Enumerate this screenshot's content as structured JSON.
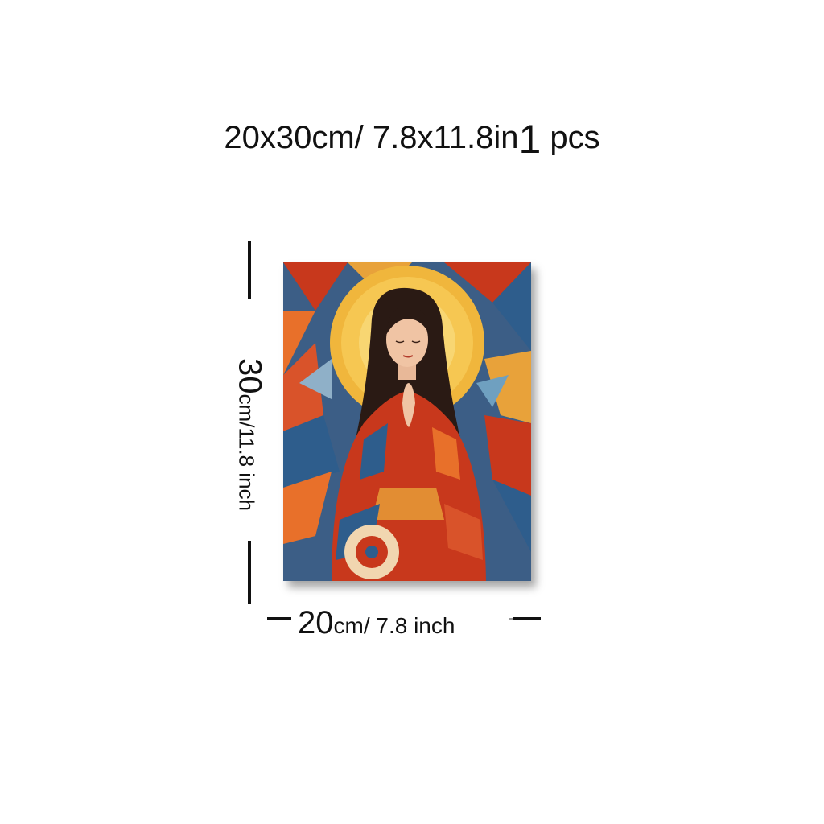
{
  "headline": {
    "part1": "20x30cm/ 7.8x11.8in",
    "qty": "1",
    "unit": " pcs"
  },
  "dimensions": {
    "height_number": "30",
    "height_rest": "cm/11.8 inch",
    "width_number": "20",
    "width_rest": "cm/ 7.8 inch"
  },
  "colors": {
    "background": "#ffffff",
    "halo": "#f2b63a",
    "robe": "#c8381c",
    "hair": "#2a1a14",
    "mosaic_blue": "#2e5d8c",
    "mosaic_orange": "#e8702a"
  }
}
